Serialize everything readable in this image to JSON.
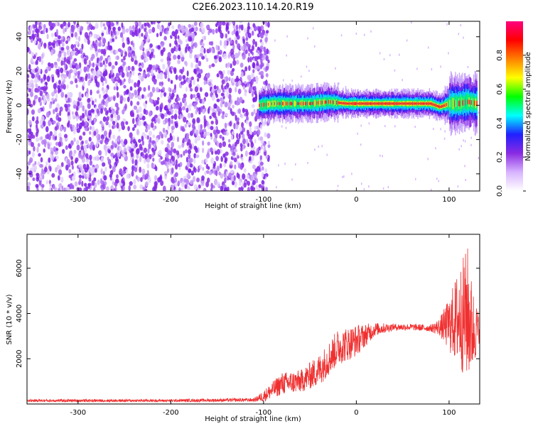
{
  "title": "C2E6.2023.110.14.20.R19",
  "chart_data": [
    {
      "type": "heatmap",
      "xlabel": "Height of straight line (km)",
      "ylabel": "Frequency (Hz)",
      "xlim": [
        -355,
        133
      ],
      "ylim": [
        -50,
        49
      ],
      "xticks": [
        "-300",
        "-200",
        "-100",
        "0",
        "100"
      ],
      "xtick_values": [
        -300,
        -200,
        -100,
        0,
        100
      ],
      "yticks": [
        "-40",
        "-20",
        "0",
        "20",
        "40"
      ],
      "ytick_values": [
        -40,
        -20,
        0,
        20,
        40
      ],
      "grid": false,
      "colorbar": {
        "label": "Normalized spectral amplitude",
        "range": [
          0,
          1
        ],
        "ticks": [
          "0.0",
          "0.2",
          "0.4",
          "0.6",
          "0.8"
        ],
        "tick_values": [
          0.0,
          0.2,
          0.4,
          0.6,
          0.8
        ],
        "colormap": [
          "#ffffff",
          "#d8b4ff",
          "#8a2be2",
          "#2020ff",
          "#00ffff",
          "#00ff00",
          "#ffff00",
          "#ff8000",
          "#ff0000",
          "#ff007f"
        ]
      },
      "noise_region_x": [
        -355,
        -100
      ],
      "signal_ridge": {
        "x": [
          -105,
          -90,
          -70,
          -50,
          -30,
          -10,
          0,
          20,
          40,
          60,
          80,
          90,
          100,
          110,
          120,
          130
        ],
        "freq_hz": [
          0,
          1,
          1,
          1,
          2,
          1,
          1,
          1,
          1,
          1,
          1,
          -1,
          1,
          1,
          2,
          1
        ]
      }
    },
    {
      "type": "line",
      "xlabel": "Height of straight line (km)",
      "ylabel": "SNR (10 * v/v)",
      "xlim": [
        -355,
        133
      ],
      "ylim": [
        0,
        7500
      ],
      "xticks": [
        "-300",
        "-200",
        "-100",
        "0",
        "100"
      ],
      "xtick_values": [
        -300,
        -200,
        -100,
        0,
        100
      ],
      "yticks": [
        "2000",
        "4000",
        "6000"
      ],
      "ytick_values": [
        2000,
        4000,
        6000
      ],
      "grid": false,
      "series": [
        {
          "color": "#f03030",
          "x": [
            -355,
            -300,
            -200,
            -110,
            -100,
            -80,
            -60,
            -40,
            -20,
            0,
            20,
            40,
            60,
            80,
            90,
            100,
            110,
            120,
            125,
            133
          ],
          "y": [
            150,
            150,
            150,
            180,
            350,
            900,
            1000,
            1500,
            2500,
            2800,
            3300,
            3400,
            3400,
            3350,
            3400,
            3500,
            3800,
            4000,
            3300,
            3300
          ],
          "spread": [
            60,
            60,
            60,
            80,
            250,
            500,
            500,
            700,
            800,
            700,
            300,
            150,
            150,
            150,
            400,
            1200,
            2200,
            3000,
            2000,
            500
          ]
        }
      ]
    }
  ]
}
